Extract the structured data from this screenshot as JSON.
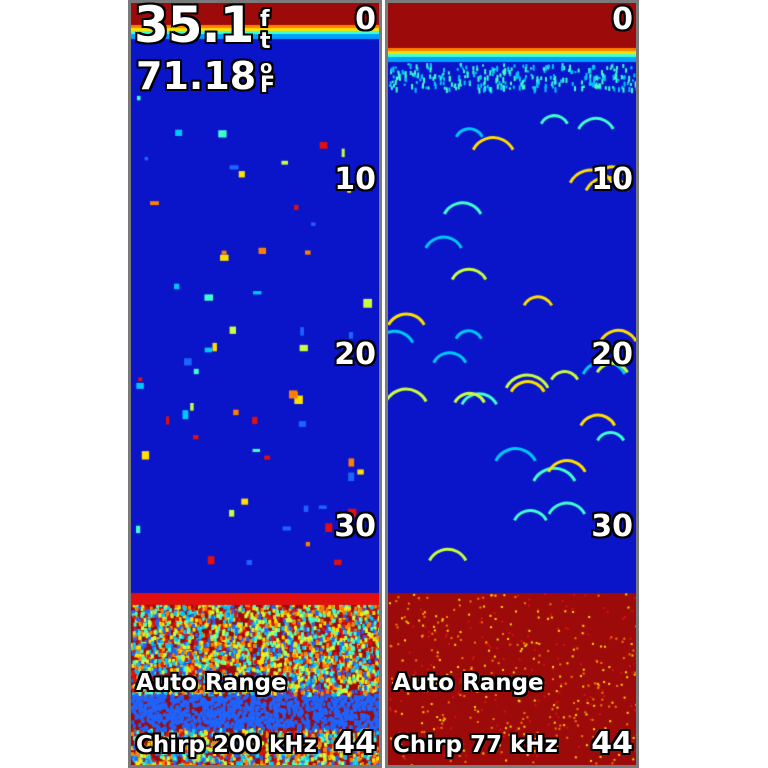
{
  "left_panel": {
    "depth_value": "35.1",
    "depth_unit": [
      "f",
      "t"
    ],
    "temperature_value": "71.18",
    "temperature_unit": [
      "o",
      "F"
    ],
    "scale_ticks": [
      "0",
      "10",
      "20",
      "30"
    ],
    "range_mode": "Auto Range",
    "frequency": "Chirp 200 kHz",
    "range_max": "44"
  },
  "right_panel": {
    "scale_ticks": [
      "0",
      "10",
      "20",
      "30"
    ],
    "range_mode": "Auto Range",
    "frequency": "Chirp 77 kHz",
    "range_max": "44"
  },
  "colors": {
    "water": "#0a14c8",
    "strong": "#9c0a0a",
    "border": "#7a7a7a",
    "text": "#ffffff"
  }
}
